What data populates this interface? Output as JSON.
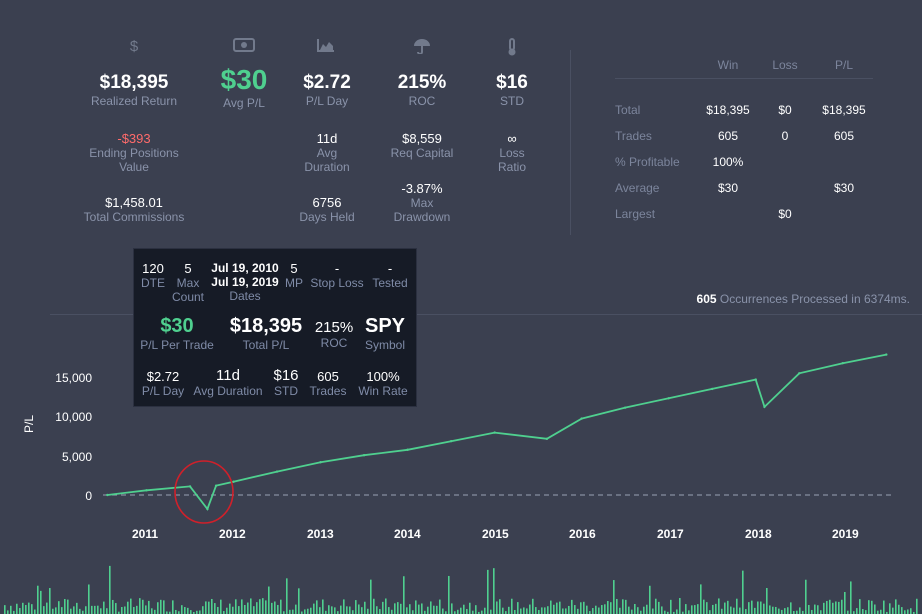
{
  "icons": [
    "dollar-icon",
    "money-bill-icon",
    "area-chart-icon",
    "umbrella-icon",
    "thermometer-icon"
  ],
  "stats": {
    "realized_return": {
      "value": "$18,395",
      "label": "Realized Return"
    },
    "avg_pl": {
      "value": "$30",
      "label": "Avg P/L"
    },
    "pl_day": {
      "value": "$2.72",
      "label": "P/L Day"
    },
    "roc": {
      "value": "215%",
      "label": "ROC"
    },
    "std": {
      "value": "$16",
      "label": "STD"
    },
    "ending_positions": {
      "value": "-$393",
      "label": "Ending Positions Value"
    },
    "avg_duration": {
      "value": "11d",
      "label": "Avg Duration"
    },
    "req_capital": {
      "value": "$8,559",
      "label": "Req Capital"
    },
    "loss_ratio": {
      "value": "∞",
      "label": "Loss Ratio"
    },
    "total_commissions": {
      "value": "$1,458.01",
      "label": "Total Commissions"
    },
    "days_held": {
      "value": "6756",
      "label": "Days Held"
    },
    "max_drawdown": {
      "value": "-3.87%",
      "label": "Max Drawdown"
    }
  },
  "summary_table": {
    "headers": [
      "",
      "Win",
      "Loss",
      "P/L"
    ],
    "rows": [
      [
        "Total",
        "$18,395",
        "$0",
        "$18,395"
      ],
      [
        "Trades",
        "605",
        "0",
        "605"
      ],
      [
        "% Profitable",
        "100%",
        "",
        ""
      ],
      [
        "Average",
        "$30",
        "",
        "$30"
      ],
      [
        "Largest",
        "",
        "$0",
        ""
      ]
    ]
  },
  "occurrences": {
    "count": "605",
    "text": "Occurrences Processed in 6374ms."
  },
  "tooltip": {
    "dte": {
      "value": "120",
      "label": "DTE"
    },
    "max_count": {
      "value": "5",
      "label": "Max Count"
    },
    "dates": {
      "start": "Jul 19, 2010",
      "end": "Jul 19, 2019",
      "label": "Dates"
    },
    "mp": {
      "value": "5",
      "label": "MP"
    },
    "stop_loss": {
      "value": "-",
      "label": "Stop Loss"
    },
    "tested": {
      "value": "-",
      "label": "Tested"
    },
    "pl_per_trade": {
      "value": "$30",
      "label": "P/L Per Trade"
    },
    "total_pl": {
      "value": "$18,395",
      "label": "Total P/L"
    },
    "roc": {
      "value": "215%",
      "label": "ROC"
    },
    "symbol": {
      "value": "SPY",
      "label": "Symbol"
    },
    "pl_day": {
      "value": "$2.72",
      "label": "P/L Day"
    },
    "avg_duration": {
      "value": "11d",
      "label": "Avg Duration"
    },
    "std": {
      "value": "$16",
      "label": "STD"
    },
    "trades": {
      "value": "605",
      "label": "Trades"
    },
    "win_rate": {
      "value": "100%",
      "label": "Win Rate"
    }
  },
  "chart": {
    "ylabel": "P/L",
    "yticks": [
      "15,000",
      "10,000",
      "5,000",
      "0"
    ],
    "xticks": [
      "2011",
      "2012",
      "2013",
      "2014",
      "2015",
      "2016",
      "2017",
      "2018",
      "2019"
    ],
    "colors": {
      "line": "#4fd08f",
      "bg": "#3b4050",
      "annotation": "#d0202a"
    }
  },
  "chart_data": {
    "type": "line",
    "ylabel": "P/L",
    "x": [
      2010.55,
      2011.0,
      2011.5,
      2011.7,
      2011.8,
      2012.0,
      2012.5,
      2013.0,
      2013.5,
      2014.0,
      2014.5,
      2015.0,
      2015.6,
      2016.0,
      2016.5,
      2017.0,
      2017.5,
      2018.0,
      2018.1,
      2018.5,
      2019.0,
      2019.5
    ],
    "values": [
      0,
      600,
      1100,
      -1800,
      1200,
      1700,
      3000,
      4200,
      5100,
      5800,
      6900,
      8000,
      7200,
      9800,
      11200,
      12400,
      13600,
      14800,
      11300,
      15600,
      16900,
      18000
    ],
    "ylim": [
      -2500,
      18500
    ],
    "xlim": [
      2010.5,
      2019.6
    ],
    "grid": false
  }
}
